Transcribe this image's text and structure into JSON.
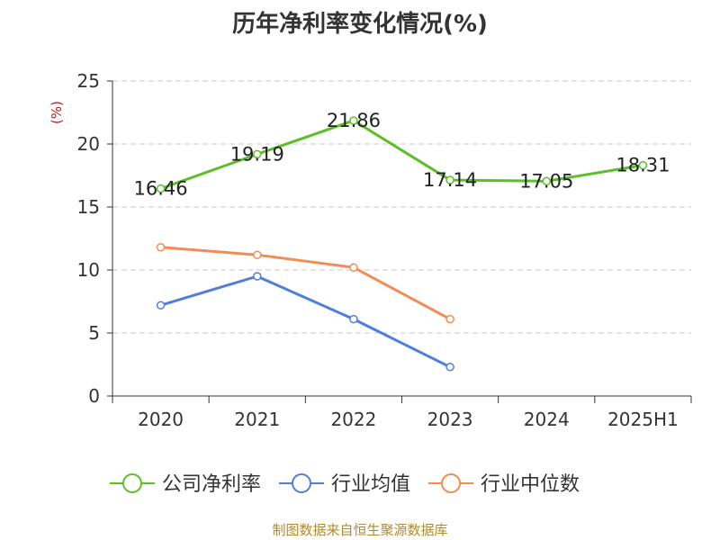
{
  "title": "历年净利率变化情况(%)",
  "source": "制图数据来自恒生聚源数据库",
  "chart_data": {
    "type": "line",
    "title": "历年净利率变化情况(%)",
    "ylabel": "(%)",
    "xlabel": "",
    "categories": [
      "2020",
      "2021",
      "2022",
      "2023",
      "2024",
      "2025H1"
    ],
    "ylim": [
      0,
      25
    ],
    "yticks": [
      0,
      5,
      10,
      15,
      20,
      25
    ],
    "grid": true,
    "legend_position": "bottom",
    "series": [
      {
        "name": "公司净利率",
        "color": "#5cbf2a",
        "values": [
          16.46,
          19.19,
          21.86,
          17.14,
          17.05,
          18.31
        ],
        "labels": [
          "16.46",
          "19.19",
          "21.86",
          "17.14",
          "17.05",
          "18.31"
        ]
      },
      {
        "name": "行业均值",
        "color": "#4f7fd8",
        "values": [
          7.2,
          9.5,
          6.1,
          2.3,
          null,
          null
        ]
      },
      {
        "name": "行业中位数",
        "color": "#f28c54",
        "values": [
          11.8,
          11.2,
          10.2,
          6.1,
          null,
          null
        ]
      }
    ]
  }
}
